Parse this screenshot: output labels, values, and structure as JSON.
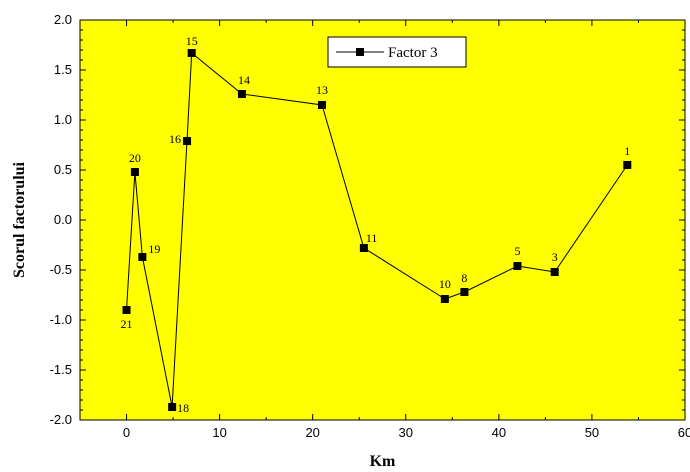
{
  "chart_data": {
    "type": "line",
    "xlabel": "Km",
    "ylabel": "Scorul factorului",
    "xlim": [
      -5,
      60
    ],
    "ylim": [
      -2.0,
      2.0
    ],
    "x_ticks": [
      "0",
      "10",
      "20",
      "30",
      "40",
      "50",
      "60"
    ],
    "y_ticks": [
      "-2.0",
      "-1.5",
      "-1.0",
      "-0.5",
      "0.0",
      "0.5",
      "1.0",
      "1.5",
      "2.0"
    ],
    "grid": false,
    "legend_position": "top-right",
    "background_color": "#ffff00",
    "line_color": "#000000",
    "series": [
      {
        "name": "Factor 3",
        "points": [
          {
            "label": "21",
            "x": 0.0,
            "y": -0.9
          },
          {
            "label": "20",
            "x": 0.9,
            "y": 0.48
          },
          {
            "label": "19",
            "x": 1.7,
            "y": -0.37
          },
          {
            "label": "18",
            "x": 4.9,
            "y": -1.87
          },
          {
            "label": "16",
            "x": 6.5,
            "y": 0.79
          },
          {
            "label": "15",
            "x": 7.0,
            "y": 1.67
          },
          {
            "label": "14",
            "x": 12.4,
            "y": 1.26
          },
          {
            "label": "13",
            "x": 21.0,
            "y": 1.15
          },
          {
            "label": "11",
            "x": 25.5,
            "y": -0.28
          },
          {
            "label": "10",
            "x": 34.2,
            "y": -0.79
          },
          {
            "label": "8",
            "x": 36.3,
            "y": -0.72
          },
          {
            "label": "5",
            "x": 42.0,
            "y": -0.46
          },
          {
            "label": "3",
            "x": 46.0,
            "y": -0.52
          },
          {
            "label": "1",
            "x": 53.8,
            "y": 0.55
          }
        ]
      }
    ]
  }
}
